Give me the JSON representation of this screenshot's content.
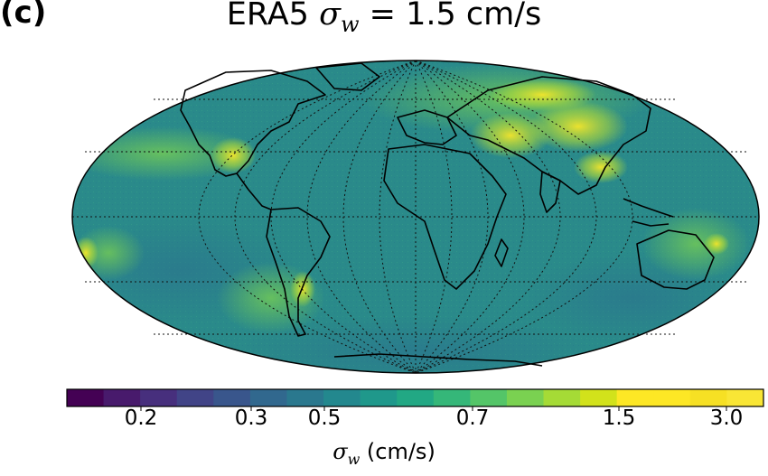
{
  "panel": {
    "label": "(c)"
  },
  "title": {
    "prefix": "ERA5 ",
    "symbol": "σ",
    "subscript": "w",
    "suffix": " = 1.5 cm/s"
  },
  "map": {
    "projection": "Mollweide",
    "graticule": "dotted",
    "coastlines": true,
    "field_description": "sigma_w wind variability field, mostly blue-green (~0.5–0.7 cm/s) with yellow hotspots over mountainous regions (Rockies, Andes, Himalaya/Tibet, central Asia) up to ~3.0 cm/s",
    "background_color": "#2a8c8a"
  },
  "colorbar": {
    "colormap": "viridis",
    "segments": 19,
    "tick_labels": [
      "0.2",
      "0.3",
      "0.5",
      "0.7",
      "1.5",
      "3.0"
    ],
    "label": {
      "symbol": "σ",
      "subscript": "w",
      "unit": " (cm/s)"
    },
    "colors": [
      "#440154",
      "#481a6c",
      "#472f7d",
      "#414487",
      "#39568c",
      "#31688e",
      "#2a788e",
      "#23888e",
      "#1f988b",
      "#22a884",
      "#35b779",
      "#54c568",
      "#7ad151",
      "#a5db36",
      "#d2e21b",
      "#fde725",
      "#fde725",
      "#f6e024",
      "#f9e635"
    ]
  }
}
